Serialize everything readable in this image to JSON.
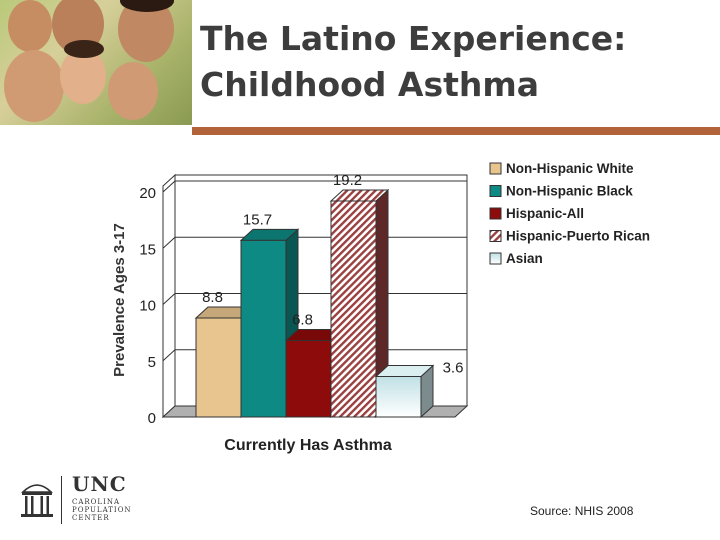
{
  "title": [
    "The Latino Experience:",
    "Childhood Asthma"
  ],
  "logo": {
    "name": "UNC",
    "subtitle": "CAROLINA\nPOPULATION\nCENTER"
  },
  "source": "Source: NHIS 2008",
  "colors": {
    "accent": "#b3633a",
    "title": "#3d3d3d"
  },
  "photo_icon": "family-photo",
  "chart_data": {
    "type": "bar",
    "categories": [
      "Currently Has Asthma"
    ],
    "xlabel": "Currently Has Asthma",
    "ylabel": "Prevalence Ages 3-17",
    "ylim": [
      0,
      20
    ],
    "yticks": [
      0,
      5,
      10,
      15,
      20
    ],
    "grid": true,
    "three_d": true,
    "legend_position": "right",
    "series": [
      {
        "name": "Non-Hispanic White",
        "values": [
          8.8
        ],
        "label": "8.8",
        "color": "#e8c48e",
        "pattern": "solid"
      },
      {
        "name": "Non-Hispanic Black",
        "values": [
          15.7
        ],
        "label": "15.7",
        "color": "#0e8a84",
        "pattern": "solid"
      },
      {
        "name": "Hispanic-All",
        "values": [
          6.8
        ],
        "label": "6.8",
        "color": "#8e0b0b",
        "pattern": "solid"
      },
      {
        "name": "Hispanic-Puerto Rican",
        "values": [
          19.2
        ],
        "label": "19.2",
        "color": "#9a4040",
        "pattern": "hatch"
      },
      {
        "name": "Asian",
        "values": [
          3.6
        ],
        "label": "3.6",
        "color": "#cfe8ea",
        "pattern": "gradient"
      }
    ]
  }
}
